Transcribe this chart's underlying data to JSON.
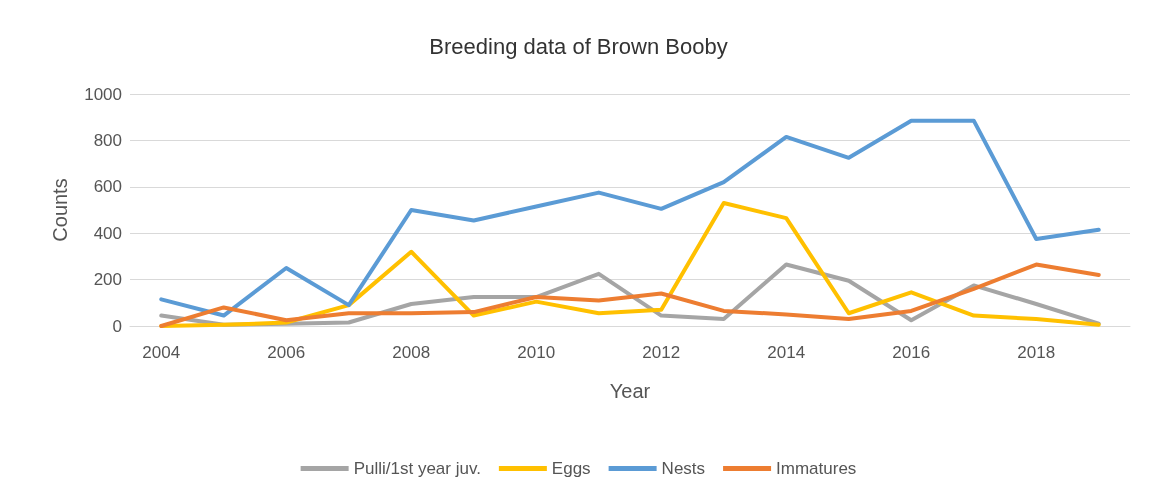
{
  "chart_data": {
    "type": "line",
    "title": "Breeding data of Brown Booby",
    "xlabel": "Year",
    "ylabel": "Counts",
    "categories": [
      "2004",
      null,
      "2006",
      null,
      "2008",
      null,
      "2010",
      null,
      "2012",
      null,
      "2014",
      null,
      "2016",
      null,
      "2018",
      null
    ],
    "series": [
      {
        "name": "Pulli/1st year juv.",
        "color": "#a5a5a5",
        "values": [
          45,
          5,
          10,
          15,
          95,
          125,
          125,
          225,
          45,
          30,
          265,
          195,
          25,
          175,
          95,
          10
        ]
      },
      {
        "name": "Eggs",
        "color": "#ffc000",
        "values": [
          0,
          5,
          15,
          90,
          320,
          45,
          105,
          55,
          70,
          530,
          465,
          55,
          145,
          45,
          30,
          5
        ]
      },
      {
        "name": "Nests",
        "color": "#5b9bd5",
        "values": [
          115,
          45,
          250,
          90,
          500,
          455,
          515,
          575,
          505,
          620,
          815,
          725,
          885,
          885,
          375,
          415
        ]
      },
      {
        "name": "Immatures",
        "color": "#ed7d31",
        "values": [
          0,
          80,
          25,
          55,
          55,
          60,
          125,
          110,
          140,
          65,
          50,
          30,
          65,
          160,
          265,
          220
        ]
      }
    ],
    "ylim": [
      0,
      1000
    ],
    "yticks": [
      0,
      200,
      400,
      600,
      800,
      1000
    ],
    "grid": "y",
    "legend": "bottom",
    "marker": "none",
    "line_style": "solid"
  }
}
